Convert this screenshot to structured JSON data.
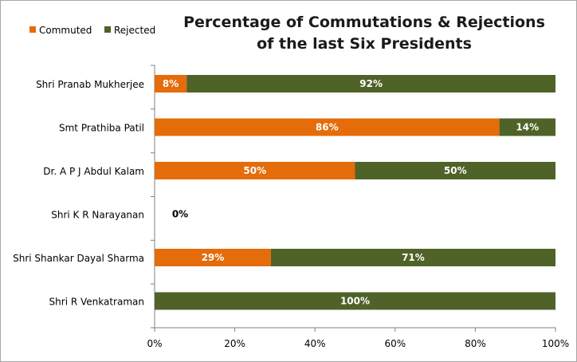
{
  "chart_data": {
    "type": "bar",
    "orientation": "horizontal",
    "stacked": true,
    "title_lines": [
      "Percentage of Commutations & Rejections",
      "of the last Six Presidents"
    ],
    "categories": [
      "Shri Pranab Mukherjee",
      "Smt Prathiba Patil",
      "Dr. A P J Abdul Kalam",
      "Shri K R Narayanan",
      "Shri Shankar Dayal Sharma",
      "Shri R Venkatraman"
    ],
    "series": [
      {
        "name": "Commuted",
        "color": "#e46c0a",
        "values": [
          8,
          86,
          50,
          0,
          29,
          0
        ],
        "labels": [
          "8%",
          "86%",
          "50%",
          "0%",
          "29%",
          ""
        ]
      },
      {
        "name": "Rejected",
        "color": "#4f6228",
        "values": [
          92,
          14,
          50,
          0,
          71,
          100
        ],
        "labels": [
          "92%",
          "14%",
          "50%",
          "",
          "71%",
          "100%"
        ]
      }
    ],
    "xlim": [
      0,
      100
    ],
    "x_ticks": [
      "0%",
      "20%",
      "40%",
      "60%",
      "80%",
      "100%"
    ],
    "legend_position": "top-left",
    "grid": false
  }
}
